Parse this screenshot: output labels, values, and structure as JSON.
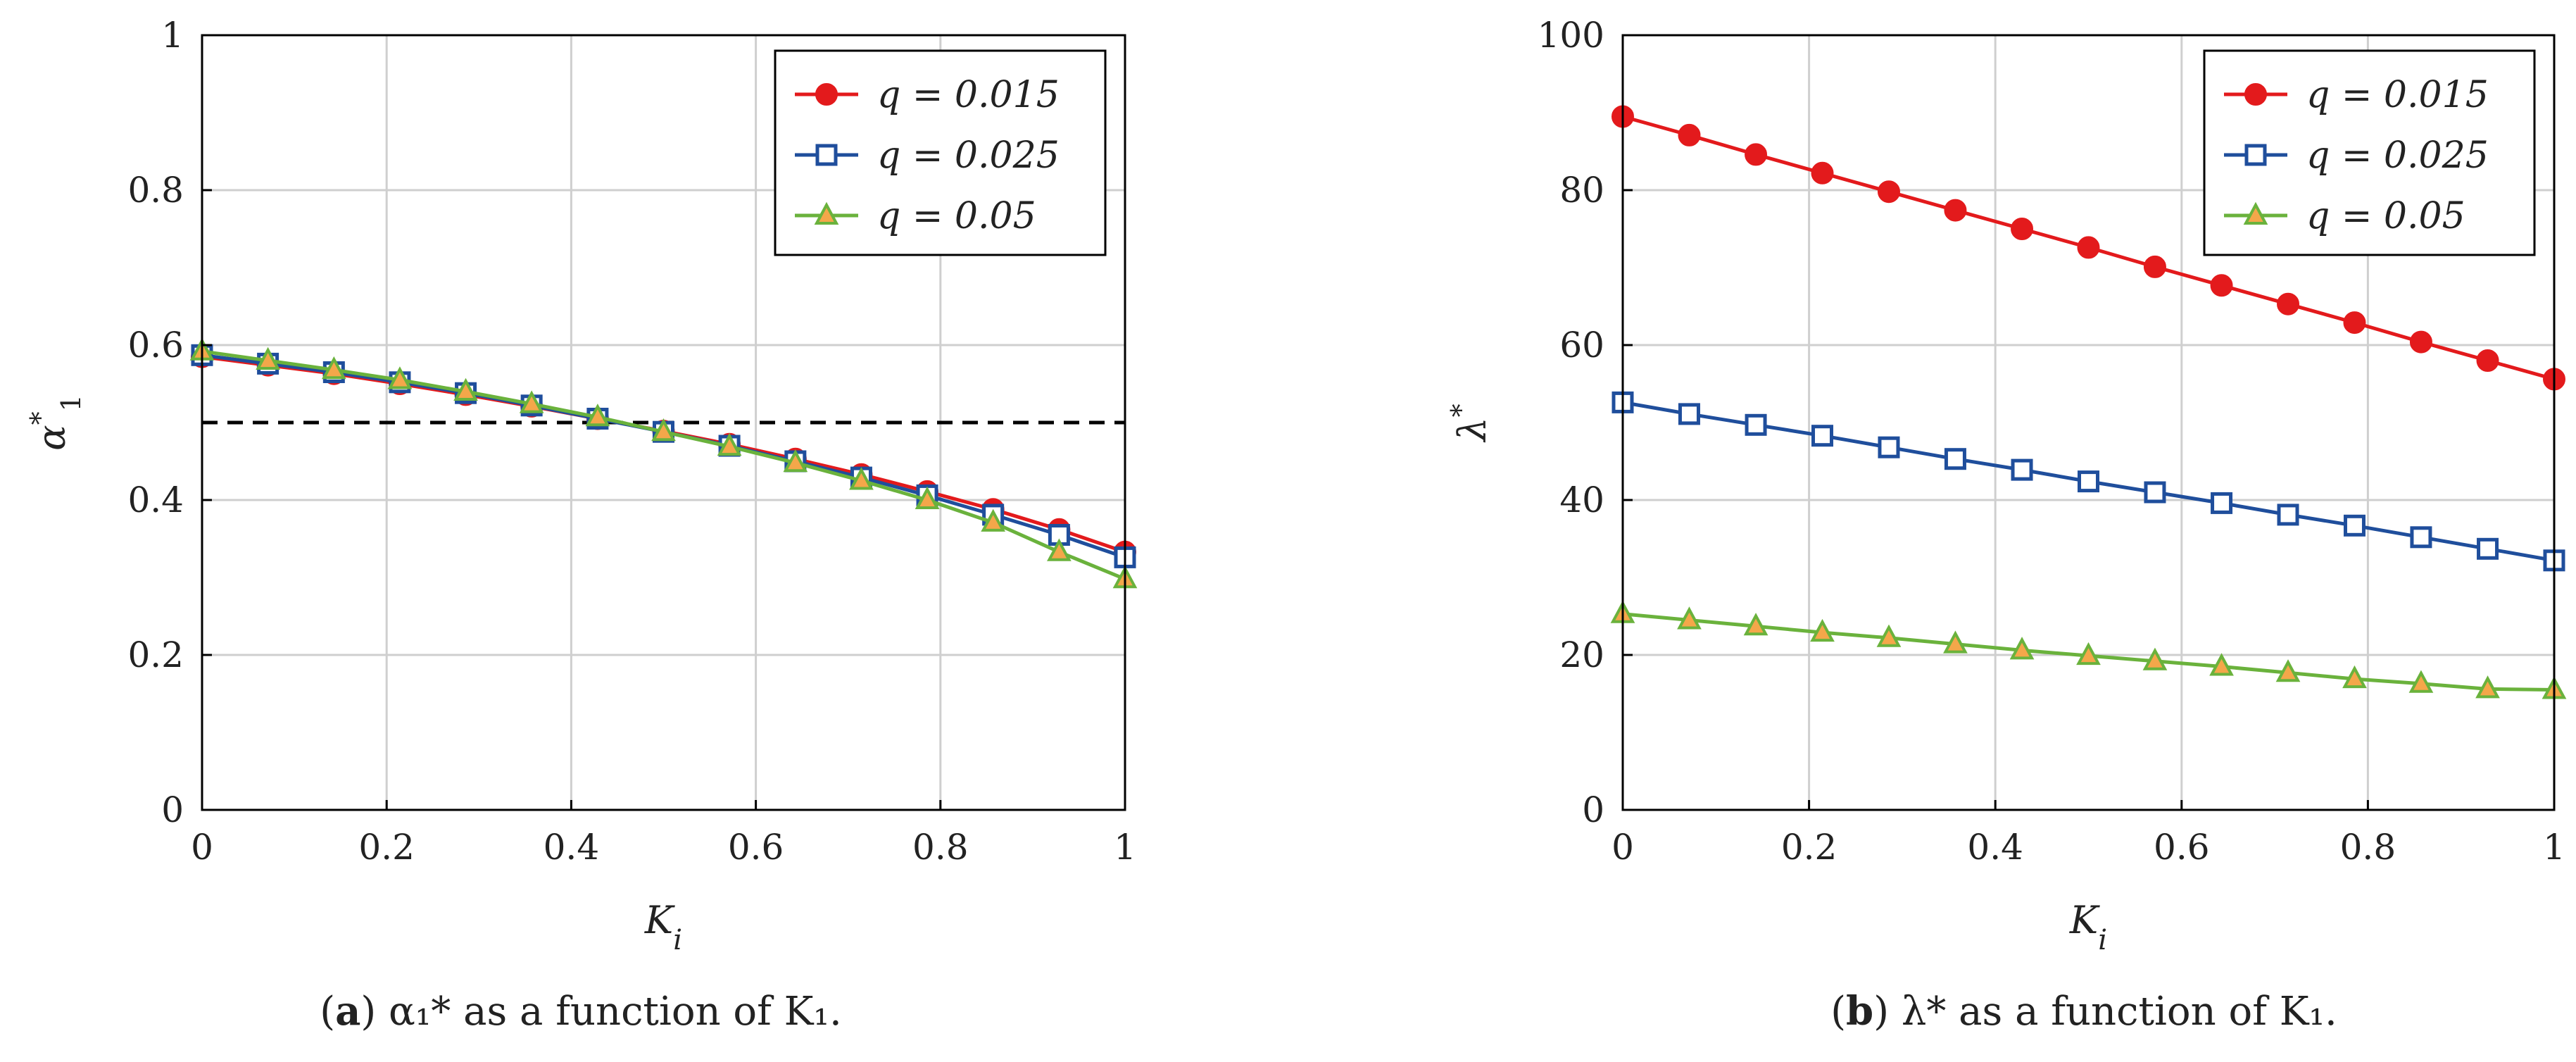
{
  "chart_data": [
    {
      "type": "line",
      "id": "a",
      "caption": {
        "letter": "a",
        "text": "α₁* as a function of K₁."
      },
      "xlabel": "K_i",
      "ylabel": "α₁*",
      "xlim": [
        0,
        1
      ],
      "ylim": [
        0,
        1
      ],
      "xticks": [
        0,
        0.2,
        0.4,
        0.6,
        0.8,
        1
      ],
      "xtick_labels": [
        "0",
        "0.2",
        "0.4",
        "0.6",
        "0.8",
        "1"
      ],
      "yticks": [
        0,
        0.2,
        0.4,
        0.6,
        0.8,
        1
      ],
      "ytick_labels": [
        "0",
        "0.2",
        "0.4",
        "0.6",
        "0.8",
        "1"
      ],
      "grid": true,
      "legend_position": "top-right",
      "reference_line": {
        "y": 0.5,
        "style": "dashed",
        "color": "#000000"
      },
      "x": [
        0,
        0.0714,
        0.1429,
        0.2143,
        0.2857,
        0.3571,
        0.4286,
        0.5,
        0.5714,
        0.6429,
        0.7143,
        0.7857,
        0.8571,
        0.9286,
        1.0
      ],
      "series": [
        {
          "name": "q = 0.015",
          "color": "#e31a1c",
          "marker": "circle",
          "values": [
            0.585,
            0.574,
            0.563,
            0.55,
            0.536,
            0.521,
            0.505,
            0.489,
            0.472,
            0.453,
            0.433,
            0.411,
            0.388,
            0.362,
            0.333
          ]
        },
        {
          "name": "q = 0.025",
          "color": "#1f4e9c",
          "marker": "square",
          "values": [
            0.587,
            0.576,
            0.565,
            0.552,
            0.538,
            0.522,
            0.505,
            0.488,
            0.47,
            0.45,
            0.429,
            0.406,
            0.381,
            0.355,
            0.326
          ]
        },
        {
          "name": "q = 0.05",
          "color": "#6ab23c",
          "marker": "triangle",
          "values": [
            0.592,
            0.58,
            0.568,
            0.555,
            0.54,
            0.524,
            0.507,
            0.488,
            0.469,
            0.448,
            0.425,
            0.4,
            0.371,
            0.333,
            0.298
          ]
        }
      ]
    },
    {
      "type": "line",
      "id": "b",
      "caption": {
        "letter": "b",
        "text": "λ* as a function of K₁."
      },
      "xlabel": "K_i",
      "ylabel": "λ*",
      "xlim": [
        0,
        1
      ],
      "ylim": [
        0,
        100
      ],
      "xticks": [
        0,
        0.2,
        0.4,
        0.6,
        0.8,
        1
      ],
      "xtick_labels": [
        "0",
        "0.2",
        "0.4",
        "0.6",
        "0.8",
        "1"
      ],
      "yticks": [
        0,
        20,
        40,
        60,
        80,
        100
      ],
      "ytick_labels": [
        "0",
        "20",
        "40",
        "60",
        "80",
        "100"
      ],
      "grid": true,
      "legend_position": "top-right",
      "x": [
        0,
        0.0714,
        0.1429,
        0.2143,
        0.2857,
        0.3571,
        0.4286,
        0.5,
        0.5714,
        0.6429,
        0.7143,
        0.7857,
        0.8571,
        0.9286,
        1.0
      ],
      "series": [
        {
          "name": "q = 0.015",
          "color": "#e31a1c",
          "marker": "circle",
          "values": [
            89.5,
            87.1,
            84.6,
            82.2,
            79.8,
            77.4,
            75.0,
            72.6,
            70.1,
            67.7,
            65.3,
            62.9,
            60.4,
            58.0,
            55.6
          ]
        },
        {
          "name": "q = 0.025",
          "color": "#1f4e9c",
          "marker": "square",
          "values": [
            52.6,
            51.1,
            49.7,
            48.3,
            46.8,
            45.3,
            43.9,
            42.4,
            41.0,
            39.6,
            38.1,
            36.7,
            35.2,
            33.7,
            32.2
          ]
        },
        {
          "name": "q = 0.05",
          "color": "#6ab23c",
          "marker": "triangle",
          "values": [
            25.3,
            24.5,
            23.7,
            22.9,
            22.2,
            21.4,
            20.6,
            19.9,
            19.2,
            18.5,
            17.7,
            16.9,
            16.3,
            15.6,
            15.5
          ]
        }
      ]
    }
  ]
}
